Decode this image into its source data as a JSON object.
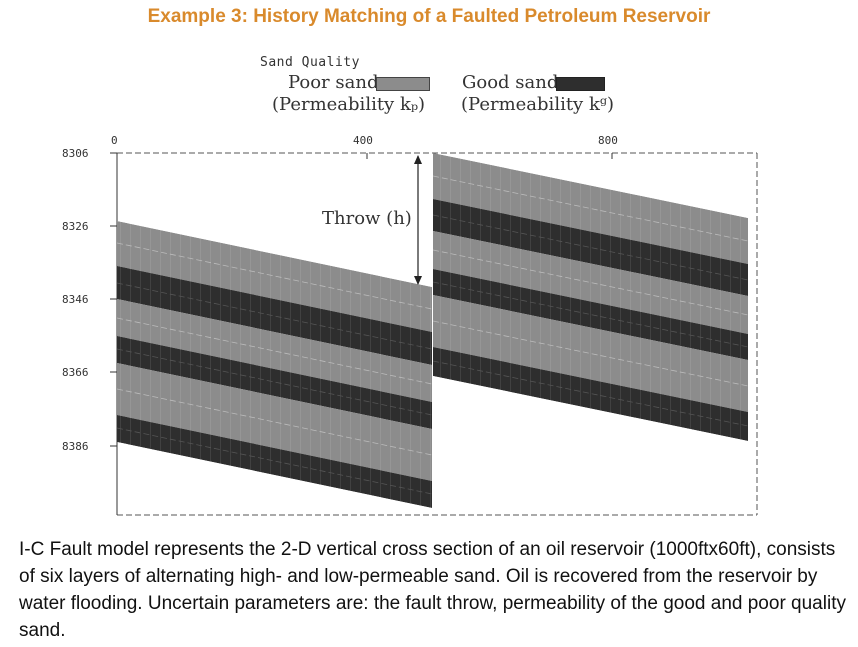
{
  "title": "Example 3: History Matching of a Faulted Petroleum Reservoir",
  "legend": {
    "heading": "Sand Quality",
    "poor_label": "Poor sand",
    "poor_sub": "(Permeability kₚ)",
    "good_label": "Good sand",
    "good_sub": "(Permeability kᵍ)"
  },
  "axis": {
    "y_ticks": [
      "8306",
      "8326",
      "8346",
      "8366",
      "8386"
    ],
    "x_ticks": [
      "0",
      "400",
      "800"
    ]
  },
  "throw_label": "Throw (h)",
  "colors": {
    "title": "#d98a2c",
    "poor_sand": "#8c8c8c",
    "good_sand": "#2e2e2e"
  },
  "description": "I-C Fault model represents the 2-D vertical cross section of an oil reservoir (1000ftx60ft), consists of six layers of alternating high- and low-permeable sand. Oil is recovered from the reservoir by water flooding. Uncertain parameters are: the fault throw, permeability of the good and poor quality sand."
}
